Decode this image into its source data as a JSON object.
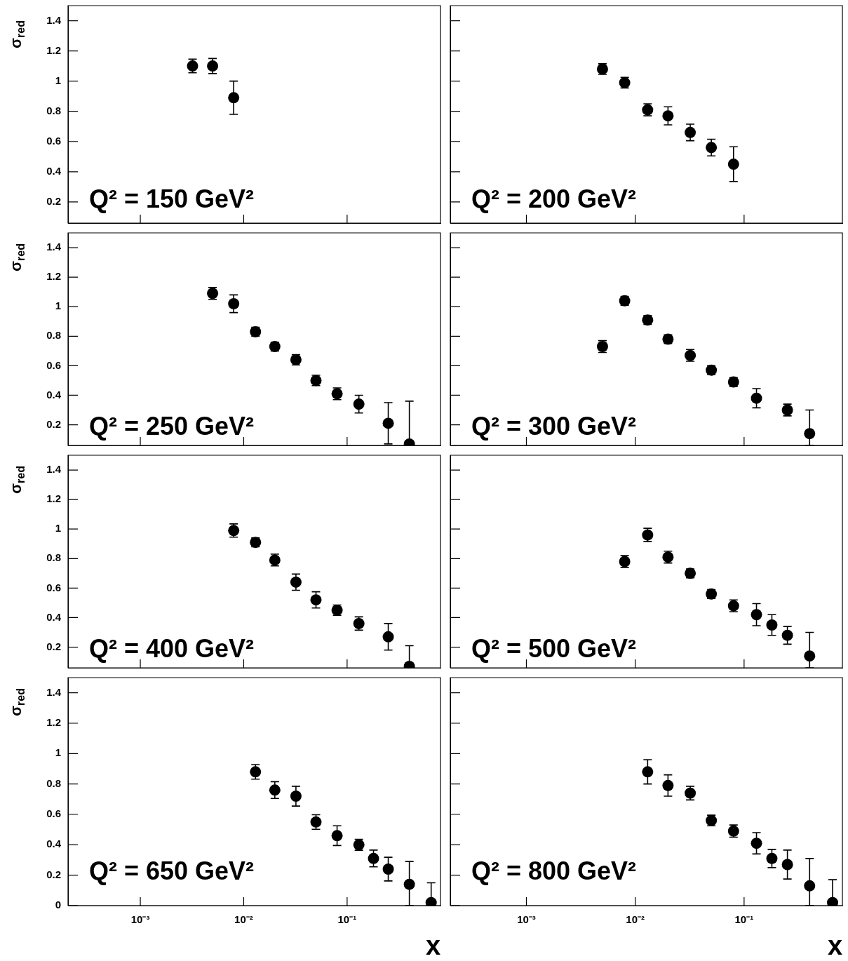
{
  "chart_data": [
    {
      "type": "scatter",
      "title": "Q² = 150 GeV²",
      "ylabel": "σ$_{red}$",
      "color": "#000000",
      "marker": "circle",
      "log": "x",
      "tick_labels": "y",
      "xlim": [
        0.0002,
        0.8
      ],
      "ylim": [
        0.06,
        1.5
      ],
      "xticks": [
        {
          "value": 0.001,
          "label": null
        },
        {
          "value": 0.01,
          "label": null
        },
        {
          "value": 0.1,
          "label": null
        }
      ],
      "yticks": [
        0.2,
        0.4,
        0.6,
        0.8,
        1,
        1.2,
        1.4
      ],
      "x": [
        0.0032,
        0.005,
        0.008
      ],
      "values": [
        1.1,
        1.1,
        0.89
      ],
      "errors": [
        0.045,
        0.05,
        0.11
      ]
    },
    {
      "type": "scatter",
      "title": "Q² = 200 GeV²",
      "color": "#000000",
      "marker": "circle",
      "log": "x",
      "tick_labels": false,
      "xlim": [
        0.0002,
        0.8
      ],
      "ylim": [
        0.06,
        1.5
      ],
      "xticks": [
        {
          "value": 0.001,
          "label": null
        },
        {
          "value": 0.01,
          "label": null
        },
        {
          "value": 0.1,
          "label": null
        }
      ],
      "yticks": [
        {
          "value": 0.2,
          "label": null
        },
        {
          "value": 0.4,
          "label": null
        },
        {
          "value": 0.6,
          "label": null
        },
        {
          "value": 0.8,
          "label": null
        },
        {
          "value": 1,
          "label": null
        },
        {
          "value": 1.2,
          "label": null
        },
        {
          "value": 1.4,
          "label": null
        }
      ],
      "x": [
        0.005,
        0.008,
        0.013,
        0.02,
        0.032,
        0.05,
        0.08
      ],
      "values": [
        1.08,
        0.99,
        0.81,
        0.77,
        0.66,
        0.56,
        0.45
      ],
      "errors": [
        0.035,
        0.035,
        0.04,
        0.06,
        0.055,
        0.055,
        0.115
      ]
    },
    {
      "type": "scatter",
      "title": "Q² = 250 GeV²",
      "ylabel": "σ$_{red}$",
      "color": "#000000",
      "marker": "circle",
      "log": "x",
      "tick_labels": "y",
      "xlim": [
        0.0002,
        0.8
      ],
      "ylim": [
        0.06,
        1.5
      ],
      "xticks": [
        {
          "value": 0.001,
          "label": null
        },
        {
          "value": 0.01,
          "label": null
        },
        {
          "value": 0.1,
          "label": null
        }
      ],
      "yticks": [
        0.2,
        0.4,
        0.6,
        0.8,
        1,
        1.2,
        1.4
      ],
      "x": [
        0.005,
        0.008,
        0.013,
        0.02,
        0.032,
        0.05,
        0.08,
        0.13,
        0.25,
        0.4
      ],
      "values": [
        1.09,
        1.02,
        0.83,
        0.73,
        0.64,
        0.5,
        0.41,
        0.34,
        0.21,
        0.07
      ],
      "errors": [
        0.04,
        0.06,
        0.03,
        0.03,
        0.035,
        0.035,
        0.04,
        0.06,
        0.14,
        [
          0.06,
          0.36
        ]
      ]
    },
    {
      "type": "scatter",
      "title": "Q² = 300 GeV²",
      "color": "#000000",
      "marker": "circle",
      "log": "x",
      "tick_labels": false,
      "xlim": [
        0.0002,
        0.8
      ],
      "ylim": [
        0.06,
        1.5
      ],
      "xticks": [
        {
          "value": 0.001,
          "label": null
        },
        {
          "value": 0.01,
          "label": null
        },
        {
          "value": 0.1,
          "label": null
        }
      ],
      "yticks": [
        {
          "value": 0.2,
          "label": null
        },
        {
          "value": 0.4,
          "label": null
        },
        {
          "value": 0.6,
          "label": null
        },
        {
          "value": 0.8,
          "label": null
        },
        {
          "value": 1,
          "label": null
        },
        {
          "value": 1.2,
          "label": null
        },
        {
          "value": 1.4,
          "label": null
        }
      ],
      "x": [
        0.005,
        0.008,
        0.013,
        0.02,
        0.032,
        0.05,
        0.08,
        0.13,
        0.25,
        0.4
      ],
      "values": [
        0.73,
        1.04,
        0.91,
        0.78,
        0.67,
        0.57,
        0.49,
        0.38,
        0.3,
        0.14
      ],
      "errors": [
        0.04,
        0.03,
        0.03,
        0.03,
        0.04,
        0.03,
        0.03,
        0.065,
        0.04,
        [
          0.06,
          0.3
        ]
      ]
    },
    {
      "type": "scatter",
      "title": "Q² = 400 GeV²",
      "ylabel": "σ$_{red}$",
      "color": "#000000",
      "marker": "circle",
      "log": "x",
      "tick_labels": "y",
      "xlim": [
        0.0002,
        0.8
      ],
      "ylim": [
        0.06,
        1.5
      ],
      "xticks": [
        {
          "value": 0.001,
          "label": null
        },
        {
          "value": 0.01,
          "label": null
        },
        {
          "value": 0.1,
          "label": null
        }
      ],
      "yticks": [
        0.2,
        0.4,
        0.6,
        0.8,
        1,
        1.2,
        1.4
      ],
      "x": [
        0.008,
        0.013,
        0.02,
        0.032,
        0.05,
        0.08,
        0.13,
        0.25,
        0.4
      ],
      "values": [
        0.99,
        0.91,
        0.79,
        0.64,
        0.52,
        0.45,
        0.36,
        0.27,
        0.07
      ],
      "errors": [
        0.045,
        0.03,
        0.04,
        0.055,
        0.055,
        0.035,
        0.045,
        0.09,
        [
          0.06,
          0.21
        ]
      ]
    },
    {
      "type": "scatter",
      "title": "Q² = 500 GeV²",
      "color": "#000000",
      "marker": "circle",
      "log": "x",
      "tick_labels": false,
      "xlim": [
        0.0002,
        0.8
      ],
      "ylim": [
        0.06,
        1.5
      ],
      "xticks": [
        {
          "value": 0.001,
          "label": null
        },
        {
          "value": 0.01,
          "label": null
        },
        {
          "value": 0.1,
          "label": null
        }
      ],
      "yticks": [
        {
          "value": 0.2,
          "label": null
        },
        {
          "value": 0.4,
          "label": null
        },
        {
          "value": 0.6,
          "label": null
        },
        {
          "value": 0.8,
          "label": null
        },
        {
          "value": 1,
          "label": null
        },
        {
          "value": 1.2,
          "label": null
        },
        {
          "value": 1.4,
          "label": null
        }
      ],
      "x": [
        0.008,
        0.013,
        0.02,
        0.032,
        0.05,
        0.08,
        0.13,
        0.18,
        0.25,
        0.4
      ],
      "values": [
        0.78,
        0.96,
        0.81,
        0.7,
        0.56,
        0.48,
        0.42,
        0.35,
        0.28,
        0.14
      ],
      "errors": [
        0.04,
        0.045,
        0.04,
        0.03,
        0.03,
        0.04,
        0.075,
        0.07,
        0.06,
        [
          0.06,
          0.3
        ]
      ]
    },
    {
      "type": "scatter",
      "title": "Q² = 650 GeV²",
      "ylabel": "σ$_{red}$",
      "xlabel": "x",
      "color": "#000000",
      "marker": "circle",
      "log": "x",
      "xlim": [
        0.0002,
        0.8
      ],
      "ylim": [
        0,
        1.5
      ],
      "xticks": [
        {
          "value": 0.001,
          "label": "10⁻³"
        },
        {
          "value": 0.01,
          "label": "10⁻²"
        },
        {
          "value": 0.1,
          "label": "10⁻¹"
        }
      ],
      "yticks": [
        0,
        0.2,
        0.4,
        0.6,
        0.8,
        1,
        1.2,
        1.4
      ],
      "x": [
        0.013,
        0.02,
        0.032,
        0.05,
        0.08,
        0.13,
        0.18,
        0.25,
        0.4,
        0.65
      ],
      "values": [
        0.88,
        0.76,
        0.72,
        0.55,
        0.46,
        0.4,
        0.31,
        0.24,
        0.14,
        0.02
      ],
      "errors": [
        0.048,
        0.055,
        0.065,
        0.048,
        0.065,
        0.036,
        0.055,
        0.078,
        [
          0,
          0.29
        ],
        [
          0,
          0.15
        ]
      ]
    },
    {
      "type": "scatter",
      "title": "Q² = 800 GeV²",
      "xlabel": "x",
      "color": "#000000",
      "marker": "circle",
      "log": "x",
      "tick_labels": "x",
      "xlim": [
        0.0002,
        0.8
      ],
      "ylim": [
        0,
        1.5
      ],
      "xticks": [
        {
          "value": 0.001,
          "label": "10⁻³"
        },
        {
          "value": 0.01,
          "label": "10⁻²"
        },
        {
          "value": 0.1,
          "label": "10⁻¹"
        }
      ],
      "yticks": [
        {
          "value": 0,
          "label": null
        },
        {
          "value": 0.2,
          "label": null
        },
        {
          "value": 0.4,
          "label": null
        },
        {
          "value": 0.6,
          "label": null
        },
        {
          "value": 0.8,
          "label": null
        },
        {
          "value": 1,
          "label": null
        },
        {
          "value": 1.2,
          "label": null
        },
        {
          "value": 1.4,
          "label": null
        }
      ],
      "x": [
        0.013,
        0.02,
        0.032,
        0.05,
        0.08,
        0.13,
        0.18,
        0.25,
        0.4,
        0.65
      ],
      "values": [
        0.88,
        0.79,
        0.74,
        0.56,
        0.49,
        0.41,
        0.31,
        0.27,
        0.13,
        0.02
      ],
      "errors": [
        0.08,
        0.07,
        0.045,
        0.035,
        0.04,
        0.07,
        0.06,
        0.095,
        [
          0,
          0.31
        ],
        [
          0,
          0.17
        ]
      ]
    }
  ]
}
